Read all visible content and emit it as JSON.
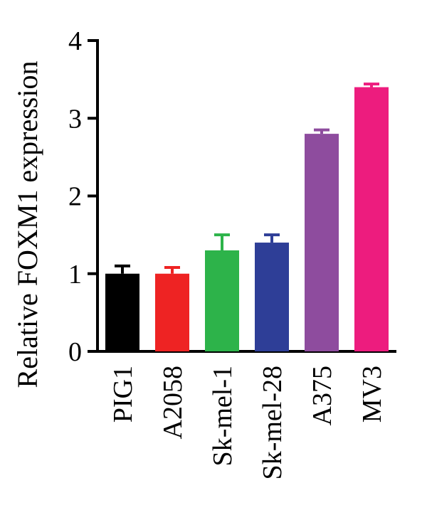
{
  "chart_data": {
    "type": "bar",
    "categories": [
      "PIG1",
      "A2058",
      "Sk-mel-1",
      "Sk-mel-28",
      "A375",
      "MV3"
    ],
    "values": [
      1.0,
      1.0,
      1.3,
      1.4,
      2.8,
      3.4
    ],
    "errors": [
      0.1,
      0.08,
      0.2,
      0.1,
      0.05,
      0.04
    ],
    "colors": [
      "#000000",
      "#ee2323",
      "#2db34a",
      "#2e3e97",
      "#8e4c9e",
      "#ed1c7e"
    ],
    "ylabel": "Relative FOXM1 expression",
    "ylim": [
      0,
      4
    ],
    "yticks": [
      "0",
      "1",
      "2",
      "3",
      "4"
    ],
    "grid": false,
    "legend": "none"
  }
}
